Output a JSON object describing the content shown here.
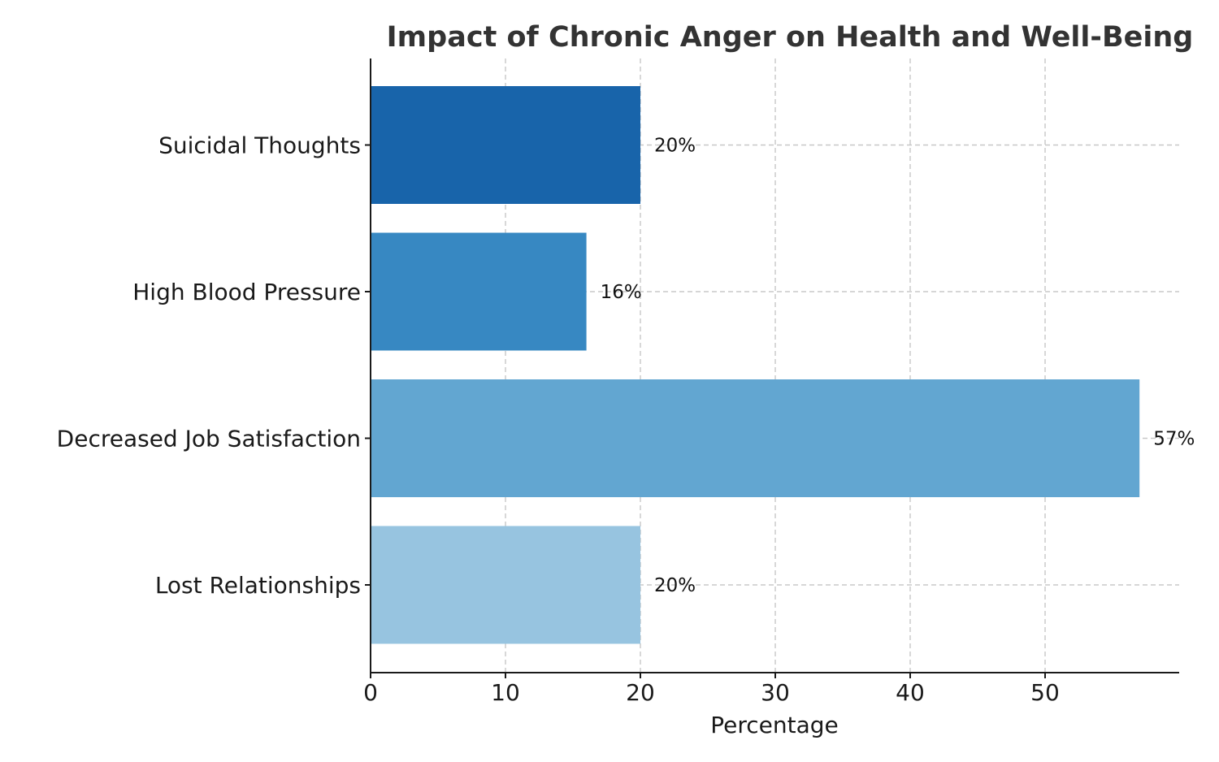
{
  "chart_data": {
    "type": "bar",
    "orientation": "horizontal",
    "title": "Impact of Chronic Anger on Health and Well-Being",
    "xlabel": "Percentage",
    "ylabel": "",
    "categories": [
      "Lost Relationships",
      "Decreased Job Satisfaction",
      "High Blood Pressure",
      "Suicidal Thoughts"
    ],
    "values": [
      20,
      57,
      16,
      20
    ],
    "value_labels": [
      "20%",
      "57%",
      "16%",
      "20%"
    ],
    "colors": [
      "#97c4e0",
      "#62a6d1",
      "#3788c2",
      "#1864aa"
    ],
    "xlim": [
      0,
      60
    ],
    "xticks": [
      0,
      10,
      20,
      30,
      40,
      50
    ],
    "xtick_labels": [
      "0",
      "10",
      "20",
      "30",
      "40",
      "50"
    ],
    "grid": true
  }
}
